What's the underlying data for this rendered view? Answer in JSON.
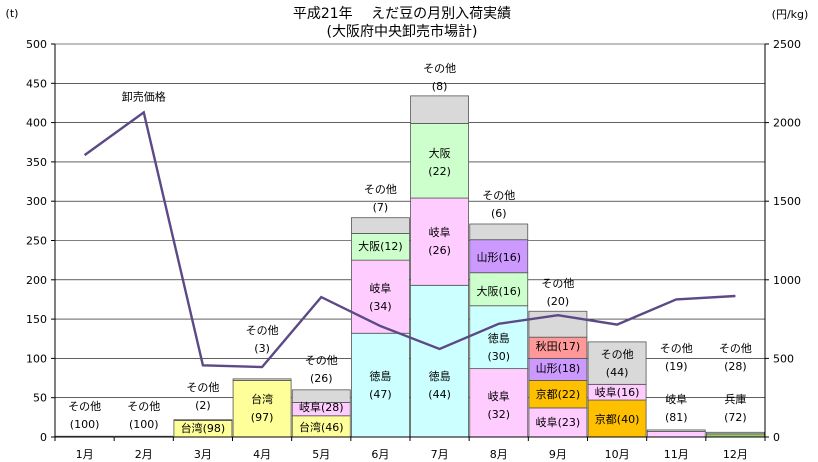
{
  "chart_data": {
    "type": "bar",
    "title_line1": "平成21年　 えだ豆の月別入荷実績",
    "title_line2": "(大阪府中央卸売市場計)",
    "y_left_unit": "(t)",
    "y_right_unit": "(円/kg)",
    "ylim_left": [
      0,
      500
    ],
    "ylim_right": [
      0,
      2500
    ],
    "left_ticks": [
      "0",
      "50",
      "100",
      "150",
      "200",
      "250",
      "300",
      "350",
      "400",
      "450",
      "500"
    ],
    "right_ticks": [
      "0",
      "500",
      "1000",
      "1500",
      "2000",
      "2500"
    ],
    "categories": [
      "1月",
      "2月",
      "3月",
      "4月",
      "5月",
      "6月",
      "7月",
      "8月",
      "9月",
      "10月",
      "11月",
      "12月"
    ],
    "colors": {
      "sonota": "#d9d9d9",
      "taiwan": "#ffff99",
      "gifu": "#ffccff",
      "tokushima": "#ccffff",
      "osaka": "#ccffcc",
      "yamagata": "#cc99ff",
      "akita": "#ff9999",
      "kyoto": "#ffc000",
      "hyogo": "#99cc66",
      "price": "#5b4a86"
    },
    "segment_labels": {
      "sonota": "その他",
      "taiwan": "台湾",
      "gifu": "岐阜",
      "tokushima": "徳島",
      "osaka": "大阪",
      "yamagata": "山形",
      "akita": "秋田",
      "kyoto": "京都",
      "hyogo": "兵庫"
    },
    "stacks": [
      [
        {
          "key": "sonota",
          "value": 1,
          "pct": "(100)"
        }
      ],
      [
        {
          "key": "sonota",
          "value": 1,
          "pct": "(100)"
        }
      ],
      [
        {
          "key": "taiwan",
          "value": 21,
          "pct": "(98)"
        },
        {
          "key": "sonota",
          "value": 1,
          "pct": "(2)"
        }
      ],
      [
        {
          "key": "taiwan",
          "value": 72,
          "pct": "(97)"
        },
        {
          "key": "sonota",
          "value": 2,
          "pct": "(3)"
        }
      ],
      [
        {
          "key": "taiwan",
          "value": 27,
          "pct": "(46)"
        },
        {
          "key": "gifu",
          "value": 17,
          "pct": "(28)"
        },
        {
          "key": "sonota",
          "value": 16,
          "pct": "(26)"
        }
      ],
      [
        {
          "key": "tokushima",
          "value": 132,
          "pct": "(47)"
        },
        {
          "key": "gifu",
          "value": 93,
          "pct": "(34)"
        },
        {
          "key": "osaka",
          "value": 34,
          "pct": "(12)"
        },
        {
          "key": "sonota",
          "value": 20,
          "pct": "(7)"
        }
      ],
      [
        {
          "key": "tokushima",
          "value": 193,
          "pct": "(44)"
        },
        {
          "key": "gifu",
          "value": 111,
          "pct": "(26)"
        },
        {
          "key": "osaka",
          "value": 95,
          "pct": "(22)"
        },
        {
          "key": "sonota",
          "value": 35,
          "pct": "(8)"
        }
      ],
      [
        {
          "key": "gifu",
          "value": 87,
          "pct": "(32)"
        },
        {
          "key": "tokushima",
          "value": 80,
          "pct": "(30)"
        },
        {
          "key": "osaka",
          "value": 42,
          "pct": "(16)"
        },
        {
          "key": "yamagata",
          "value": 42,
          "pct": "(16)"
        },
        {
          "key": "sonota",
          "value": 20,
          "pct": "(6)"
        }
      ],
      [
        {
          "key": "gifu",
          "value": 37,
          "pct": "(23)"
        },
        {
          "key": "kyoto",
          "value": 35,
          "pct": "(22)"
        },
        {
          "key": "yamagata",
          "value": 28,
          "pct": "(18)"
        },
        {
          "key": "akita",
          "value": 27,
          "pct": "(17)"
        },
        {
          "key": "sonota",
          "value": 33,
          "pct": "(20)"
        }
      ],
      [
        {
          "key": "kyoto",
          "value": 47,
          "pct": "(40)"
        },
        {
          "key": "gifu",
          "value": 20,
          "pct": "(16)"
        },
        {
          "key": "sonota",
          "value": 54,
          "pct": "(44)"
        }
      ],
      [
        {
          "key": "gifu",
          "value": 7,
          "pct": "(81)"
        },
        {
          "key": "sonota",
          "value": 2,
          "pct": "(19)"
        }
      ],
      [
        {
          "key": "hyogo",
          "value": 4,
          "pct": "(72)"
        },
        {
          "key": "sonota",
          "value": 2,
          "pct": "(28)"
        }
      ]
    ],
    "price_series": {
      "name": "卸売価格",
      "values": [
        1793,
        2065,
        456,
        445,
        890,
        706,
        560,
        720,
        775,
        715,
        875,
        897
      ]
    }
  }
}
